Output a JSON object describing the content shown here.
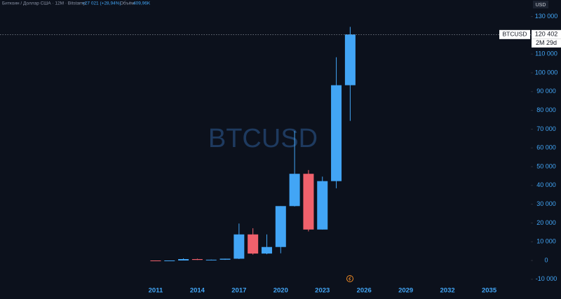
{
  "chart_data": {
    "type": "candlestick",
    "header": {
      "symbol": "Биткоин / Доллар США · 12М · Bitstamp",
      "change": "+27 021 (+28,94%)",
      "volume_label": "Объём",
      "volume": "409,96K"
    },
    "watermark": "BTCUSD",
    "currency": "USD",
    "symbol_tag": "BTCUSD",
    "last_price_label": "120 402",
    "countdown": "2M 29d",
    "x": [
      2011,
      2012,
      2013,
      2014,
      2015,
      2016,
      2017,
      2018,
      2019,
      2020,
      2021,
      2022,
      2023,
      2024,
      2025
    ],
    "open": [
      10,
      5,
      13.5,
      754,
      320,
      430,
      960,
      13900,
      3700,
      7200,
      29000,
      46200,
      16500,
      42300,
      93400
    ],
    "high": [
      30,
      16,
      1163,
      1000,
      500,
      980,
      19700,
      17200,
      13900,
      29000,
      69000,
      48200,
      44700,
      108300,
      124500
    ],
    "low": [
      2,
      4,
      13,
      300,
      152,
      350,
      750,
      3150,
      3350,
      3850,
      28800,
      15500,
      16500,
      38500,
      74400
    ],
    "close": [
      4.7,
      13.5,
      754,
      320,
      430,
      960,
      13900,
      3700,
      7200,
      29000,
      46200,
      16500,
      42300,
      93400,
      120402
    ],
    "up_color": "#42a5f5",
    "down_color": "#f0616c",
    "xlim": [
      1999.8,
      2038
    ],
    "xticks": [
      2011,
      2014,
      2017,
      2020,
      2023,
      2026,
      2029,
      2032,
      2035
    ],
    "ylim": [
      -12300,
      138800
    ],
    "yticks": [
      {
        "value": -10000,
        "label": "-10 000"
      },
      0,
      {
        "value": 10000,
        "label": "10 000"
      },
      {
        "value": 20000,
        "label": "20 000"
      },
      {
        "value": 30000,
        "label": "30 000"
      },
      {
        "value": 40000,
        "label": "40 000"
      },
      {
        "value": 50000,
        "label": "50 000"
      },
      {
        "value": 60000,
        "label": "60 000"
      },
      {
        "value": 70000,
        "label": "70 000"
      },
      {
        "value": 80000,
        "label": "80 000"
      },
      {
        "value": 90000,
        "label": "90 000"
      },
      {
        "value": 100000,
        "label": "100 000"
      },
      {
        "value": 110000,
        "label": "110 000"
      },
      {
        "value": 120000,
        "label": "120 000"
      },
      {
        "value": 130000,
        "label": "130 000"
      }
    ]
  }
}
